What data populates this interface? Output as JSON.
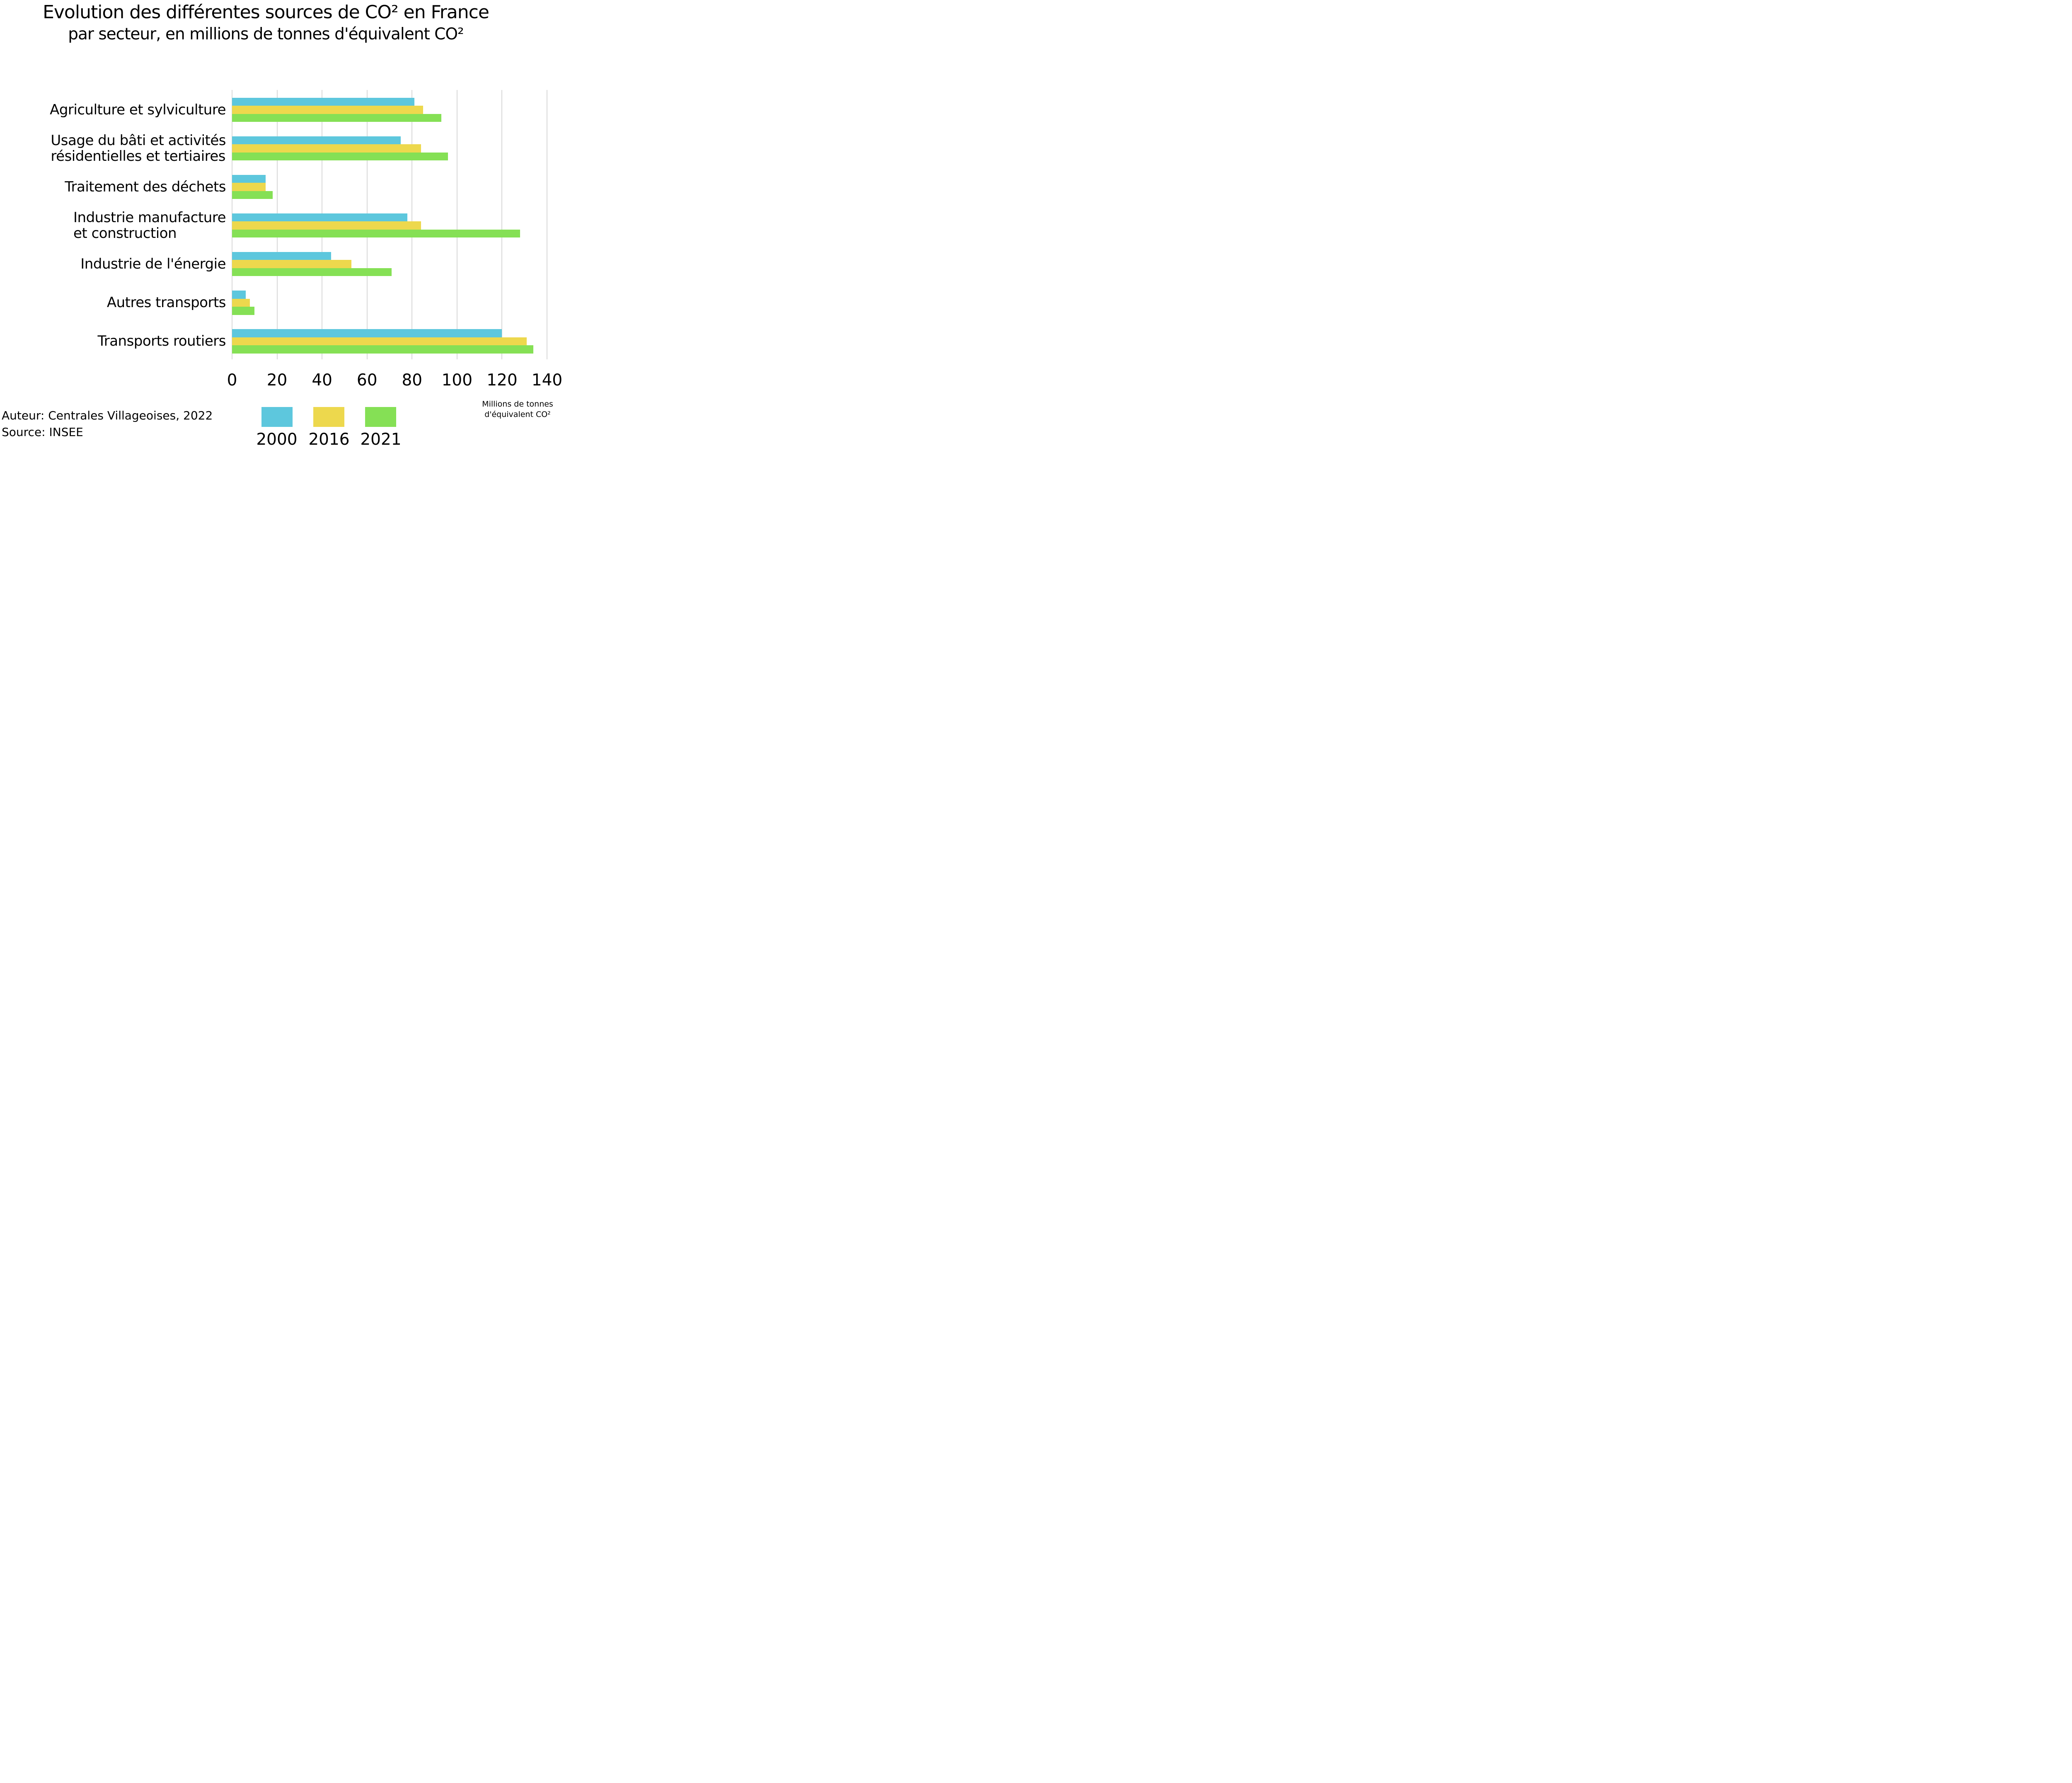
{
  "title": {
    "line1": "Evolution des différentes sources de CO² en France",
    "line2": "par secteur, en millions de tonnes d'équivalent CO²"
  },
  "note": {
    "line1": "Millions de tonnes",
    "line2": "d'équivalent CO²"
  },
  "footer": {
    "author": "Auteur: Centrales Villageoises, 2022",
    "source": "Source: INSEE"
  },
  "colors": {
    "series_2000": "#5dc7dd",
    "series_2016": "#edd84d",
    "series_2021": "#85e055",
    "gridline": "#d8d8d8",
    "text": "#000000",
    "background": "#ffffff"
  },
  "chart_data": {
    "type": "bar",
    "orientation": "horizontal",
    "title": "Evolution des différentes sources de CO² en France par secteur, en millions de tonnes d'équivalent CO²",
    "xlabel": "Millions de tonnes d'équivalent CO²",
    "ylabel": "",
    "xlim": [
      0,
      140
    ],
    "xticks": [
      0,
      20,
      40,
      60,
      80,
      100,
      120,
      140
    ],
    "grid": true,
    "legend_position": "bottom",
    "categories": [
      "Agriculture et sylviculture",
      "Usage du bâti et activités\nrésidentielles et tertiaires",
      "Traitement des déchets",
      "Industrie manufacture\net construction",
      "Industrie de l'énergie",
      "Autres transports",
      "Transports routiers"
    ],
    "series": [
      {
        "name": "2000",
        "color": "#5dc7dd",
        "values": [
          81,
          75,
          15,
          78,
          44,
          6,
          120
        ]
      },
      {
        "name": "2016",
        "color": "#edd84d",
        "values": [
          85,
          84,
          15,
          84,
          53,
          8,
          131
        ]
      },
      {
        "name": "2021",
        "color": "#85e055",
        "values": [
          93,
          96,
          18,
          128,
          71,
          10,
          134
        ]
      }
    ]
  }
}
